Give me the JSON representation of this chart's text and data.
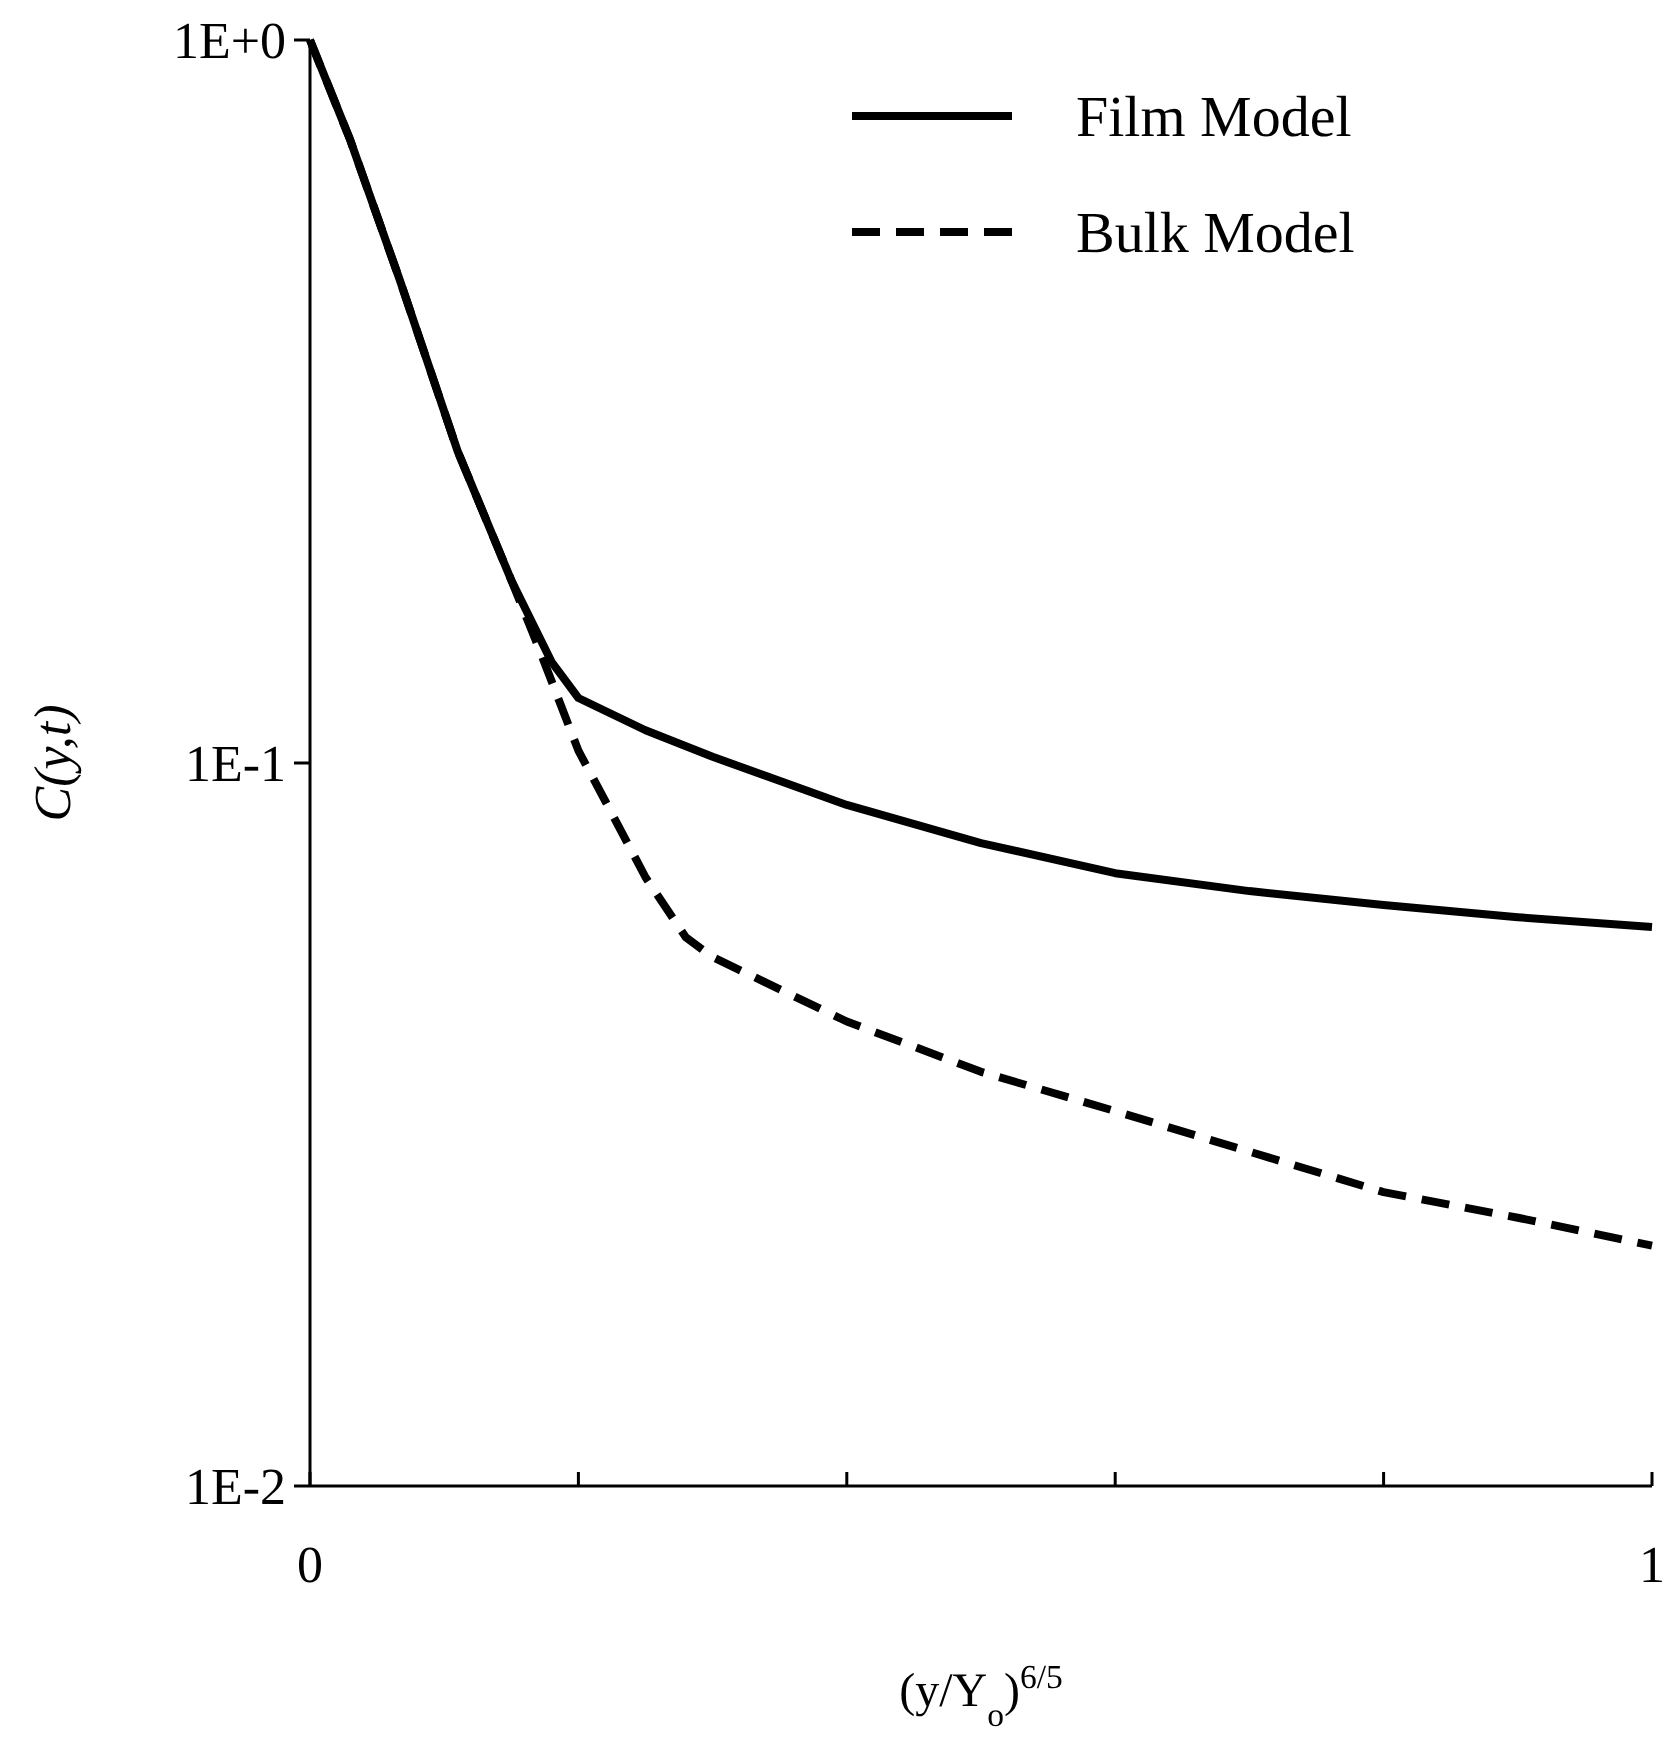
{
  "chart_data": {
    "type": "line",
    "xlabel": "(y/Y$_{o}$)$^{6/5}$",
    "ylabel": "C(y,t)",
    "log": "y",
    "xlim": [
      0,
      1
    ],
    "ylim": [
      0.01,
      1
    ],
    "xticks": [
      0,
      {
        "value": 0.2,
        "label": null
      },
      {
        "value": 0.4,
        "label": null
      },
      {
        "value": 0.6,
        "label": null
      },
      {
        "value": 0.8,
        "label": null
      },
      1
    ],
    "yticks": [
      {
        "value": 0.01,
        "label": "1E-2"
      },
      {
        "value": 0.1,
        "label": "1E-1"
      },
      {
        "value": 1,
        "label": "1E+0"
      }
    ],
    "grid": false,
    "legend": "top right",
    "marker": "none",
    "series": [
      {
        "name": "Film Model",
        "color": "#000000",
        "line_style": "solid",
        "x": [
          0,
          0.03,
          0.067,
          0.11,
          0.15,
          0.18,
          0.2,
          0.25,
          0.3,
          0.4,
          0.5,
          0.6,
          0.7,
          0.8,
          0.9,
          1.0
        ],
        "values": [
          1,
          0.727,
          0.465,
          0.27,
          0.179,
          0.138,
          0.123,
          0.111,
          0.102,
          0.0875,
          0.0775,
          0.0704,
          0.0665,
          0.0636,
          0.0612,
          0.0593
        ]
      },
      {
        "name": "Bulk Model",
        "color": "#000000",
        "line_style": "dashed",
        "x": [
          0,
          0.03,
          0.067,
          0.11,
          0.15,
          0.17,
          0.2,
          0.22,
          0.25,
          0.28,
          0.3,
          0.4,
          0.5,
          0.6,
          0.7,
          0.8,
          0.9,
          1.0
        ],
        "values": [
          1,
          0.727,
          0.465,
          0.27,
          0.179,
          0.145,
          0.104,
          0.0886,
          0.0695,
          0.0574,
          0.0539,
          0.0439,
          0.0374,
          0.033,
          0.029,
          0.0255,
          0.0235,
          0.0215
        ]
      }
    ]
  }
}
